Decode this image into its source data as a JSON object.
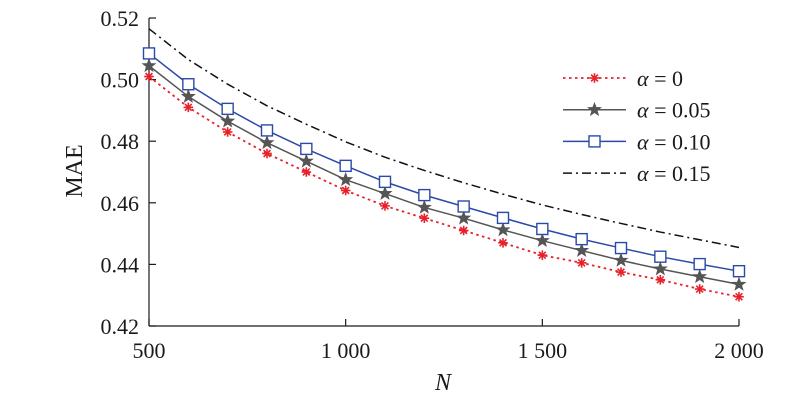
{
  "chart_data": {
    "type": "line",
    "xlabel": "N",
    "ylabel": "MAE",
    "xlim": [
      500,
      2000
    ],
    "ylim": [
      0.42,
      0.52
    ],
    "x_ticks": [
      500,
      1000,
      1500,
      2000
    ],
    "x_tick_labels": [
      "500",
      "1 000",
      "1 500",
      "2 000"
    ],
    "y_ticks": [
      0.42,
      0.44,
      0.46,
      0.48,
      0.5,
      0.52
    ],
    "y_tick_labels": [
      "0.42",
      "0.44",
      "0.46",
      "0.48",
      "0.50",
      "0.52"
    ],
    "grid": false,
    "legend_position": "right",
    "x": [
      500,
      600,
      700,
      800,
      900,
      1000,
      1100,
      1200,
      1300,
      1400,
      1500,
      1600,
      1700,
      1800,
      1900,
      2000
    ],
    "series": [
      {
        "name": "α = 0",
        "symbol": "α",
        "value_text": " = 0",
        "color": "#e8202a",
        "line_style": "dotted",
        "marker": "asterisk",
        "values": [
          0.501,
          0.491,
          0.483,
          0.476,
          0.47,
          0.464,
          0.459,
          0.455,
          0.451,
          0.447,
          0.443,
          0.4405,
          0.4375,
          0.435,
          0.432,
          0.4295
        ]
      },
      {
        "name": "α = 0.05",
        "symbol": "α",
        "value_text": " = 0.05",
        "color": "#555555",
        "line_style": "solid",
        "marker": "star",
        "values": [
          0.5045,
          0.4945,
          0.4865,
          0.4795,
          0.4735,
          0.4675,
          0.463,
          0.4585,
          0.455,
          0.4512,
          0.4477,
          0.4445,
          0.4413,
          0.4385,
          0.436,
          0.4335
        ]
      },
      {
        "name": "α = 0.10",
        "symbol": "α",
        "value_text": " = 0.10",
        "color": "#2b4aa8",
        "line_style": "solid",
        "marker": "square",
        "values": [
          0.5085,
          0.4985,
          0.4905,
          0.4835,
          0.4775,
          0.472,
          0.4668,
          0.4625,
          0.4588,
          0.4551,
          0.4515,
          0.4482,
          0.4453,
          0.4425,
          0.4401,
          0.4378
        ]
      },
      {
        "name": "α = 0.15",
        "symbol": "α",
        "value_text": " = 0.15",
        "color": "#111111",
        "line_style": "dashdot",
        "marker": "none",
        "values": [
          0.5165,
          0.5065,
          0.4985,
          0.4915,
          0.4855,
          0.4798,
          0.4748,
          0.4705,
          0.4665,
          0.4628,
          0.4593,
          0.4562,
          0.4533,
          0.4505,
          0.448,
          0.4455
        ]
      }
    ]
  }
}
